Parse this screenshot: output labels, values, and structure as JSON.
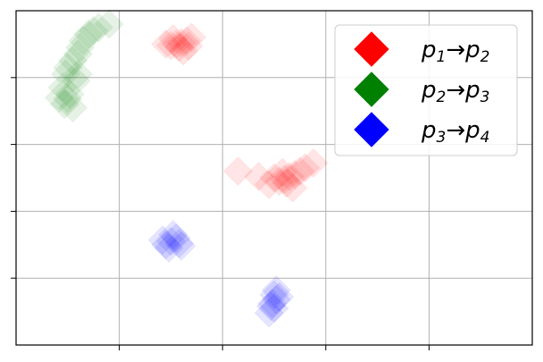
{
  "chart_data": {
    "type": "scatter",
    "title": "",
    "xlabel": "",
    "ylabel": "",
    "xlim": [
      0,
      5
    ],
    "ylim": [
      0,
      5
    ],
    "xticks": [
      1,
      2,
      3,
      4
    ],
    "yticks": [
      1,
      2,
      3,
      4
    ],
    "tick_labels_shown": false,
    "grid": true,
    "marker": "diamond",
    "legend_position": "top-right",
    "series": [
      {
        "name": "p1→p2",
        "legend": {
          "a": "p",
          "a_sub": "1",
          "arrow": "→",
          "b": "p",
          "b_sub": "2"
        },
        "color": "#ff0000",
        "points": [
          [
            1.55,
            4.5
          ],
          [
            1.6,
            4.52
          ],
          [
            1.5,
            4.48
          ],
          [
            1.65,
            4.55
          ],
          [
            1.58,
            4.45
          ],
          [
            1.52,
            4.58
          ],
          [
            1.7,
            4.6
          ],
          [
            1.62,
            4.4
          ],
          [
            1.45,
            4.5
          ],
          [
            1.67,
            4.47
          ],
          [
            2.6,
            2.48
          ],
          [
            2.65,
            2.52
          ],
          [
            2.55,
            2.45
          ],
          [
            2.7,
            2.55
          ],
          [
            2.62,
            2.42
          ],
          [
            2.58,
            2.58
          ],
          [
            2.75,
            2.6
          ],
          [
            2.5,
            2.5
          ],
          [
            2.8,
            2.65
          ],
          [
            2.15,
            2.6
          ],
          [
            2.88,
            2.72
          ],
          [
            2.45,
            2.4
          ],
          [
            2.68,
            2.35
          ],
          [
            2.35,
            2.52
          ]
        ]
      },
      {
        "name": "p2→p3",
        "legend": {
          "a": "p",
          "a_sub": "2",
          "arrow": "→",
          "b": "p",
          "b_sub": "3"
        },
        "color": "#008000",
        "points": [
          [
            0.55,
            4.25
          ],
          [
            0.6,
            4.35
          ],
          [
            0.5,
            4.15
          ],
          [
            0.62,
            4.45
          ],
          [
            0.48,
            4.05
          ],
          [
            0.58,
            3.95
          ],
          [
            0.45,
            3.85
          ],
          [
            0.52,
            3.75
          ],
          [
            0.47,
            3.6
          ],
          [
            0.55,
            3.55
          ],
          [
            0.65,
            4.55
          ],
          [
            0.7,
            4.65
          ],
          [
            0.75,
            4.7
          ],
          [
            0.8,
            4.75
          ],
          [
            0.9,
            4.8
          ],
          [
            0.42,
            3.7
          ],
          [
            0.6,
            4.05
          ],
          [
            0.5,
            3.68
          ]
        ]
      },
      {
        "name": "p3→p4",
        "legend": {
          "a": "p",
          "a_sub": "3",
          "arrow": "→",
          "b": "p",
          "b_sub": "4"
        },
        "color": "#0000ff",
        "points": [
          [
            1.5,
            1.55
          ],
          [
            1.55,
            1.6
          ],
          [
            1.45,
            1.5
          ],
          [
            1.6,
            1.48
          ],
          [
            1.52,
            1.65
          ],
          [
            1.48,
            1.45
          ],
          [
            1.58,
            1.52
          ],
          [
            1.42,
            1.57
          ],
          [
            2.5,
            0.75
          ],
          [
            2.52,
            0.68
          ],
          [
            2.48,
            0.62
          ],
          [
            2.5,
            0.55
          ],
          [
            2.45,
            0.48
          ],
          [
            2.55,
            0.72
          ],
          [
            2.52,
            0.82
          ],
          [
            2.47,
            0.58
          ]
        ]
      }
    ]
  }
}
